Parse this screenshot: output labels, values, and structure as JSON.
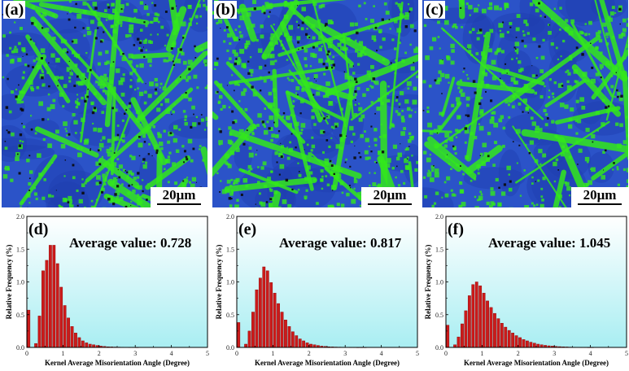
{
  "maps": [
    {
      "label": "(a)",
      "scale_label": "20μm",
      "seed": 11,
      "green_fraction": 0.55,
      "black_fraction": 0.06
    },
    {
      "label": "(b)",
      "scale_label": "20μm",
      "seed": 29,
      "green_fraction": 0.62,
      "black_fraction": 0.05
    },
    {
      "label": "(c)",
      "scale_label": "20μm",
      "seed": 47,
      "green_fraction": 0.5,
      "black_fraction": 0.03
    }
  ],
  "colors": {
    "bar_fill": "#cc1a1a",
    "bar_edge": "#8a0000",
    "plot_bg_top": "#ffffff",
    "plot_bg_bottom": "#a9eef2",
    "map_blue": "#2b53c8",
    "map_green": "#33e81c",
    "map_black": "#0a0a0a"
  },
  "chart_data": [
    {
      "type": "bar",
      "panel_label": "(d)",
      "annotation": "Average value: 0.728",
      "xlabel": "Kernel Average Misorientation Angle (Degree)",
      "ylabel": "Relative Frequency (%)",
      "xlim": [
        0,
        5
      ],
      "ylim": [
        0,
        2.0
      ],
      "xticks": [
        "0",
        "1",
        "2",
        "3",
        "4",
        "5"
      ],
      "yticks": [
        "0.0",
        "0.5",
        "1.0",
        "1.5",
        "2.0"
      ],
      "x": [
        0.0,
        0.1,
        0.2,
        0.3,
        0.4,
        0.5,
        0.6,
        0.7,
        0.8,
        0.9,
        1.0,
        1.1,
        1.2,
        1.3,
        1.4,
        1.5,
        1.6,
        1.7,
        1.8,
        1.9,
        2.0,
        2.1,
        2.2,
        2.3,
        2.4,
        2.5,
        2.6,
        2.7,
        2.8,
        2.9,
        3.0
      ],
      "values": [
        0.57,
        0.0,
        0.06,
        0.48,
        1.17,
        1.33,
        1.56,
        1.56,
        1.28,
        0.92,
        0.64,
        0.45,
        0.32,
        0.22,
        0.15,
        0.1,
        0.07,
        0.05,
        0.04,
        0.03,
        0.02,
        0.015,
        0.01,
        0.008,
        0.006,
        0.005,
        0.004,
        0.003,
        0.002,
        0.002,
        0.001
      ]
    },
    {
      "type": "bar",
      "panel_label": "(e)",
      "annotation": "Average value: 0.817",
      "xlabel": "Kernel Average Misorientation Angle (Degree)",
      "ylabel": "Relative Frequency (%)",
      "xlim": [
        0,
        5
      ],
      "ylim": [
        0,
        2.0
      ],
      "xticks": [
        "0",
        "1",
        "2",
        "3",
        "4",
        "5"
      ],
      "yticks": [
        "0.0",
        "0.5",
        "1.0",
        "1.5",
        "2.0"
      ],
      "x": [
        0.0,
        0.1,
        0.2,
        0.3,
        0.4,
        0.5,
        0.6,
        0.7,
        0.8,
        0.9,
        1.0,
        1.1,
        1.2,
        1.3,
        1.4,
        1.5,
        1.6,
        1.7,
        1.8,
        1.9,
        2.0,
        2.1,
        2.2,
        2.3,
        2.4,
        2.5,
        2.6,
        2.7,
        2.8,
        2.9,
        3.0,
        3.1,
        3.2,
        3.3,
        3.4,
        3.5
      ],
      "values": [
        0.38,
        0.0,
        0.05,
        0.25,
        0.54,
        0.88,
        1.06,
        1.23,
        1.17,
        0.99,
        0.83,
        0.67,
        0.54,
        0.42,
        0.32,
        0.24,
        0.18,
        0.13,
        0.1,
        0.07,
        0.05,
        0.04,
        0.03,
        0.02,
        0.015,
        0.01,
        0.008,
        0.006,
        0.005,
        0.004,
        0.003,
        0.002,
        0.002,
        0.001,
        0.001,
        0.001
      ]
    },
    {
      "type": "bar",
      "panel_label": "(f)",
      "annotation": "Average value: 1.045",
      "xlabel": "Kernel Average Misorientation Angle (Degree)",
      "ylabel": "Relative Frequency (%)",
      "xlim": [
        0,
        5
      ],
      "ylim": [
        0,
        2.0
      ],
      "xticks": [
        "0",
        "1",
        "2",
        "3",
        "4",
        "5"
      ],
      "yticks": [
        "0.0",
        "0.5",
        "1.0",
        "1.5",
        "2.0"
      ],
      "x": [
        0.0,
        0.1,
        0.2,
        0.3,
        0.4,
        0.5,
        0.6,
        0.7,
        0.8,
        0.9,
        1.0,
        1.1,
        1.2,
        1.3,
        1.4,
        1.5,
        1.6,
        1.7,
        1.8,
        1.9,
        2.0,
        2.1,
        2.2,
        2.3,
        2.4,
        2.5,
        2.6,
        2.7,
        2.8,
        2.9,
        3.0,
        3.1,
        3.2,
        3.3,
        3.4,
        3.5,
        3.6,
        3.7,
        3.8,
        3.9,
        4.0
      ],
      "values": [
        0.34,
        0.0,
        0.04,
        0.16,
        0.36,
        0.56,
        0.79,
        0.96,
        1.0,
        0.94,
        0.83,
        0.71,
        0.61,
        0.52,
        0.44,
        0.37,
        0.31,
        0.26,
        0.22,
        0.18,
        0.15,
        0.12,
        0.1,
        0.08,
        0.065,
        0.05,
        0.04,
        0.032,
        0.025,
        0.02,
        0.015,
        0.012,
        0.009,
        0.007,
        0.005,
        0.004,
        0.003,
        0.002,
        0.002,
        0.001,
        0.001
      ]
    }
  ]
}
